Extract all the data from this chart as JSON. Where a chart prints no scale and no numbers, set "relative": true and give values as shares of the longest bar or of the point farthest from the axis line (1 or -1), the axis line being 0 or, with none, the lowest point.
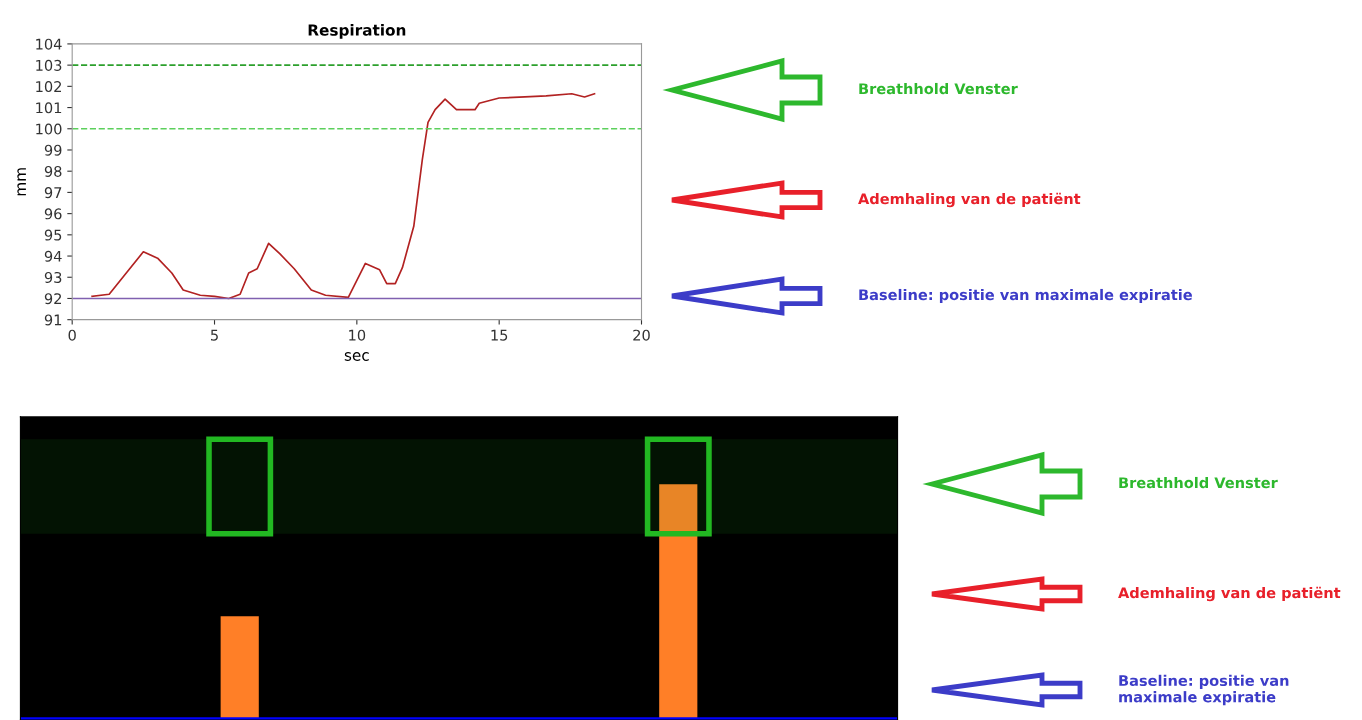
{
  "chart_data": [
    {
      "type": "line",
      "title": "Respiration",
      "xlabel": "sec",
      "ylabel": "mm",
      "x": [
        0.7,
        1.3,
        1.9,
        2.5,
        3.0,
        3.5,
        3.9,
        4.5,
        5.0,
        5.5,
        5.9,
        6.2,
        6.5,
        6.9,
        7.3,
        7.8,
        8.4,
        8.9,
        9.7,
        10.3,
        10.8,
        11.05,
        11.35,
        11.6,
        12.0,
        12.3,
        12.5,
        12.75,
        13.1,
        13.5,
        14.15,
        14.3,
        15.0,
        15.9,
        16.65,
        17.55,
        18.0,
        18.35
      ],
      "series": [
        {
          "color": "#b22222",
          "values": [
            92.1,
            92.2,
            93.2,
            94.2,
            93.9,
            93.2,
            92.4,
            92.15,
            92.1,
            92.0,
            92.2,
            93.2,
            93.4,
            94.6,
            94.1,
            93.4,
            92.4,
            92.15,
            92.05,
            93.65,
            93.35,
            92.7,
            92.7,
            93.45,
            95.4,
            98.55,
            100.3,
            100.9,
            101.4,
            100.9,
            100.9,
            101.2,
            101.45,
            101.5,
            101.55,
            101.65,
            101.5,
            101.65
          ]
        }
      ],
      "xlim": [
        0,
        20
      ],
      "xticks": [
        0,
        5,
        10,
        15,
        20
      ],
      "ylim": [
        91,
        104
      ],
      "yticks": [
        91,
        92,
        93,
        94,
        95,
        96,
        97,
        98,
        99,
        100,
        101,
        102,
        103,
        104
      ],
      "ref_lines": [
        {
          "axis": "y",
          "value": 103,
          "color": "#2ca02c",
          "line_style": "dashed"
        },
        {
          "axis": "y",
          "value": 100,
          "color": "#5cd05c",
          "line_style": "dashed"
        },
        {
          "axis": "y",
          "value": 92,
          "color": "#8060b0",
          "line_style": "solid"
        }
      ],
      "annotations": [
        "Breathhold Venster",
        "Ademhaling van de patiënt",
        "Baseline: positie van maximale expiratie"
      ],
      "grid": false
    },
    {
      "type": "bar",
      "relative": true,
      "categories": [
        null,
        null
      ],
      "values": [
        0.44,
        1
      ],
      "colors": [
        "#ff7f27",
        "#ff7f27"
      ],
      "ref_lines": [
        {
          "axis": "y",
          "value": 0,
          "color": "#0000ff",
          "line_style": "solid"
        }
      ],
      "bands": [
        {
          "axis": "y",
          "from": 0.79,
          "to": 1.19,
          "color": "#22b822"
        }
      ],
      "annotations": [
        "Breathhold Venster",
        "Ademhaling van de patiënt",
        "Baseline: positie van maximale expiratie"
      ]
    }
  ]
}
